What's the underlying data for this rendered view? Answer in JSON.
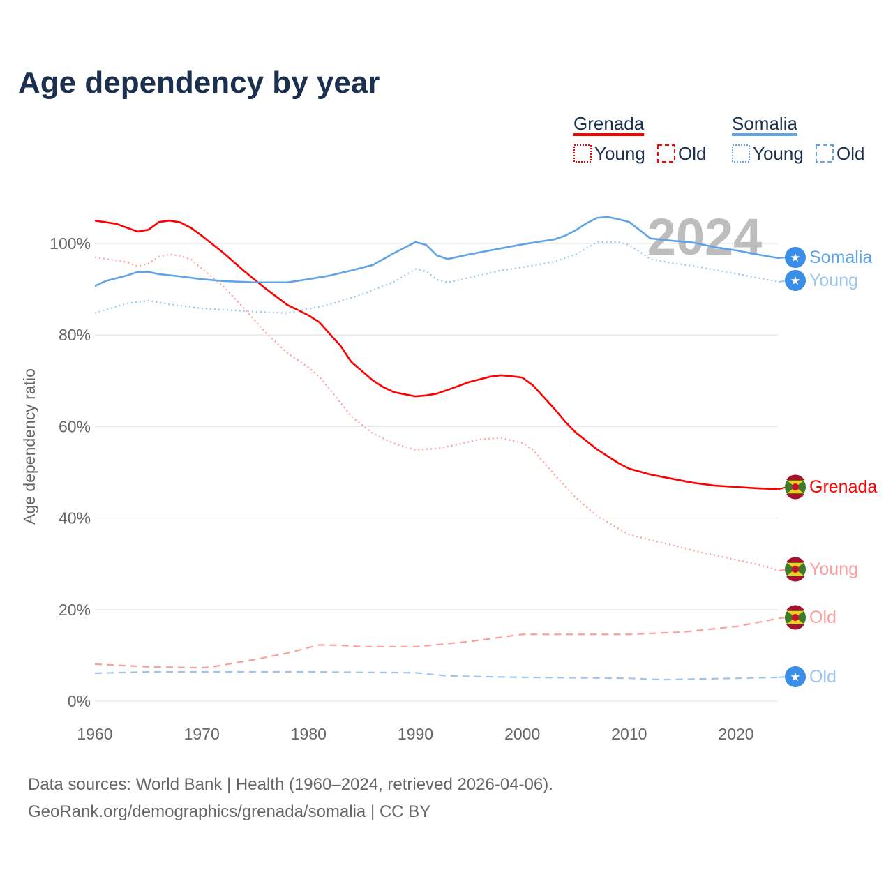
{
  "chart_data": {
    "type": "line",
    "title": "Age dependency by year",
    "ylabel": "Age dependency ratio",
    "xlabel": "",
    "xlim": [
      1960,
      2024
    ],
    "ylim": [
      0,
      110
    ],
    "x_ticks": [
      "1960",
      "1970",
      "1980",
      "1990",
      "2000",
      "2010",
      "2020"
    ],
    "y_ticks": [
      "0%",
      "20%",
      "40%",
      "60%",
      "80%",
      "100%"
    ],
    "grid": true,
    "year_watermark": "2024",
    "legend": {
      "placement": "top-right",
      "groups": [
        {
          "country": "Grenada",
          "color": "#ff0000",
          "items": [
            "Young",
            "Old"
          ]
        },
        {
          "country": "Somalia",
          "color": "#5fa3e8",
          "items": [
            "Young",
            "Old"
          ]
        }
      ]
    },
    "series": [
      {
        "name": "Grenada",
        "label": "Grenada",
        "country": "Grenada",
        "style": "solid",
        "color": "#ff0000",
        "label_color": "#ff0000",
        "points": [
          [
            1960,
            105
          ],
          [
            1962,
            104.3
          ],
          [
            1964,
            102.6
          ],
          [
            1965,
            103
          ],
          [
            1966,
            104.7
          ],
          [
            1967,
            105
          ],
          [
            1968,
            104.6
          ],
          [
            1969,
            103.4
          ],
          [
            1970,
            101.7
          ],
          [
            1972,
            98
          ],
          [
            1974,
            93.9
          ],
          [
            1976,
            90.1
          ],
          [
            1978,
            86.6
          ],
          [
            1980,
            84.3
          ],
          [
            1981,
            82.8
          ],
          [
            1983,
            77.6
          ],
          [
            1984,
            74.1
          ],
          [
            1986,
            70.1
          ],
          [
            1987,
            68.6
          ],
          [
            1988,
            67.5
          ],
          [
            1990,
            66.6
          ],
          [
            1991,
            66.8
          ],
          [
            1992,
            67.2
          ],
          [
            1993,
            68
          ],
          [
            1995,
            69.7
          ],
          [
            1997,
            70.9
          ],
          [
            1998,
            71.2
          ],
          [
            1999,
            71
          ],
          [
            2000,
            70.7
          ],
          [
            2001,
            69
          ],
          [
            2003,
            63.9
          ],
          [
            2004,
            61.1
          ],
          [
            2005,
            58.7
          ],
          [
            2007,
            55
          ],
          [
            2009,
            52
          ],
          [
            2010,
            50.8
          ],
          [
            2012,
            49.5
          ],
          [
            2014,
            48.6
          ],
          [
            2016,
            47.7
          ],
          [
            2018,
            47.1
          ],
          [
            2020,
            46.8
          ],
          [
            2022,
            46.5
          ],
          [
            2024,
            46.3
          ]
        ]
      },
      {
        "name": "Grenada Young",
        "label": "Young",
        "country": "Grenada",
        "style": "dotted",
        "color": "#ff9e9e",
        "label_color": "#ff9e9e",
        "points": [
          [
            1960,
            97
          ],
          [
            1963,
            95.9
          ],
          [
            1964,
            95
          ],
          [
            1965,
            95.6
          ],
          [
            1966,
            97.1
          ],
          [
            1967,
            97.6
          ],
          [
            1968,
            97.3
          ],
          [
            1969,
            96.5
          ],
          [
            1970,
            94.5
          ],
          [
            1972,
            90.7
          ],
          [
            1974,
            85.7
          ],
          [
            1976,
            80.5
          ],
          [
            1978,
            76.1
          ],
          [
            1980,
            72.9
          ],
          [
            1981,
            70.9
          ],
          [
            1983,
            65.2
          ],
          [
            1984,
            62.2
          ],
          [
            1986,
            58.5
          ],
          [
            1988,
            56.3
          ],
          [
            1990,
            54.9
          ],
          [
            1992,
            55.2
          ],
          [
            1994,
            56.1
          ],
          [
            1996,
            57.2
          ],
          [
            1998,
            57.5
          ],
          [
            2000,
            56.4
          ],
          [
            2001,
            54.9
          ],
          [
            2003,
            49.5
          ],
          [
            2005,
            44.5
          ],
          [
            2007,
            40.4
          ],
          [
            2009,
            37.7
          ],
          [
            2010,
            36.4
          ],
          [
            2012,
            35.2
          ],
          [
            2014,
            34.1
          ],
          [
            2016,
            32.9
          ],
          [
            2018,
            31.9
          ],
          [
            2020,
            30.9
          ],
          [
            2022,
            29.9
          ],
          [
            2024,
            28.5
          ]
        ]
      },
      {
        "name": "Grenada Old",
        "label": "Old",
        "country": "Grenada",
        "style": "dashed",
        "color": "#ff9e9e",
        "label_color": "#ff9e9e",
        "points": [
          [
            1960,
            8.1
          ],
          [
            1965,
            7.5
          ],
          [
            1970,
            7.3
          ],
          [
            1971,
            7.5
          ],
          [
            1975,
            9.1
          ],
          [
            1978,
            10.5
          ],
          [
            1981,
            12.3
          ],
          [
            1983,
            12.2
          ],
          [
            1985,
            11.9
          ],
          [
            1990,
            11.9
          ],
          [
            1995,
            13
          ],
          [
            2000,
            14.6
          ],
          [
            2005,
            14.6
          ],
          [
            2010,
            14.6
          ],
          [
            2015,
            15.1
          ],
          [
            2020,
            16.3
          ],
          [
            2024,
            18.1
          ]
        ]
      },
      {
        "name": "Somalia",
        "label": "Somalia",
        "country": "Somalia",
        "style": "solid",
        "color": "#5fa3e8",
        "label_color": "#5fa3e8",
        "points": [
          [
            1960,
            90.7
          ],
          [
            1961,
            91.8
          ],
          [
            1963,
            93
          ],
          [
            1964,
            93.8
          ],
          [
            1965,
            93.8
          ],
          [
            1966,
            93.3
          ],
          [
            1968,
            92.8
          ],
          [
            1970,
            92.2
          ],
          [
            1972,
            91.8
          ],
          [
            1975,
            91.5
          ],
          [
            1978,
            91.5
          ],
          [
            1980,
            92.2
          ],
          [
            1982,
            93
          ],
          [
            1984,
            94.1
          ],
          [
            1986,
            95.3
          ],
          [
            1988,
            97.9
          ],
          [
            1990,
            100.3
          ],
          [
            1991,
            99.7
          ],
          [
            1992,
            97.4
          ],
          [
            1993,
            96.6
          ],
          [
            1995,
            97.6
          ],
          [
            1997,
            98.5
          ],
          [
            2000,
            99.8
          ],
          [
            2003,
            100.9
          ],
          [
            2004,
            101.7
          ],
          [
            2005,
            102.9
          ],
          [
            2006,
            104.4
          ],
          [
            2007,
            105.6
          ],
          [
            2008,
            105.8
          ],
          [
            2009,
            105.3
          ],
          [
            2010,
            104.7
          ],
          [
            2012,
            101.1
          ],
          [
            2014,
            100.6
          ],
          [
            2016,
            100.2
          ],
          [
            2018,
            99.2
          ],
          [
            2020,
            98.5
          ],
          [
            2022,
            97.6
          ],
          [
            2024,
            96.8
          ]
        ]
      },
      {
        "name": "Somalia Young",
        "label": "Young",
        "country": "Somalia",
        "style": "dotted",
        "color": "#9cc6f0",
        "label_color": "#9cc6f0",
        "points": [
          [
            1960,
            84.8
          ],
          [
            1963,
            86.9
          ],
          [
            1965,
            87.5
          ],
          [
            1967,
            86.7
          ],
          [
            1970,
            85.8
          ],
          [
            1975,
            85.1
          ],
          [
            1978,
            84.8
          ],
          [
            1980,
            85.7
          ],
          [
            1982,
            86.7
          ],
          [
            1985,
            88.9
          ],
          [
            1988,
            91.6
          ],
          [
            1990,
            94.4
          ],
          [
            1991,
            93.9
          ],
          [
            1992,
            92.1
          ],
          [
            1993,
            91.5
          ],
          [
            1995,
            92.5
          ],
          [
            1998,
            94.1
          ],
          [
            2000,
            94.8
          ],
          [
            2003,
            96
          ],
          [
            2005,
            97.6
          ],
          [
            2007,
            100.3
          ],
          [
            2009,
            100.3
          ],
          [
            2010,
            99.7
          ],
          [
            2012,
            96.6
          ],
          [
            2014,
            95.7
          ],
          [
            2016,
            95.1
          ],
          [
            2018,
            94.2
          ],
          [
            2020,
            93.4
          ],
          [
            2022,
            92.5
          ],
          [
            2024,
            91.6
          ]
        ]
      },
      {
        "name": "Somalia Old",
        "label": "Old",
        "country": "Somalia",
        "style": "dashed",
        "color": "#9cc6f0",
        "label_color": "#9cc6f0",
        "points": [
          [
            1960,
            6.1
          ],
          [
            1965,
            6.4
          ],
          [
            1970,
            6.4
          ],
          [
            1980,
            6.4
          ],
          [
            1990,
            6.2
          ],
          [
            1993,
            5.5
          ],
          [
            2000,
            5.2
          ],
          [
            2010,
            5
          ],
          [
            2013,
            4.7
          ],
          [
            2020,
            5
          ],
          [
            2024,
            5.2
          ]
        ]
      }
    ]
  },
  "footer": {
    "line1": "Data sources: World Bank | Health (1960–2024, retrieved 2026-04-06).",
    "line2": "GeoRank.org/demographics/grenada/somalia | CC BY"
  }
}
